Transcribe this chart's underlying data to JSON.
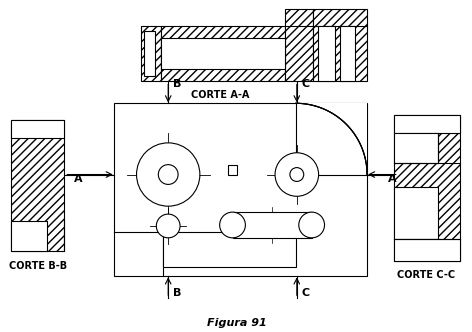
{
  "title": "Figura 91",
  "bg_color": "#ffffff",
  "line_color": "#000000",
  "label_A": "A",
  "label_B": "B",
  "label_C": "C",
  "corte_aa": "CORTE A-A",
  "corte_bb": "CORTE B-B",
  "corte_cc": "CORTE C-C",
  "fig_width": 4.72,
  "fig_height": 3.32,
  "dpi": 100
}
